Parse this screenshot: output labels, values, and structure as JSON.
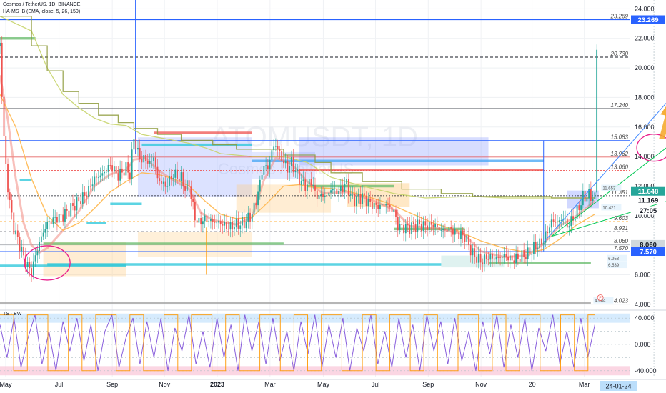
{
  "header": {
    "symbol_line": "Cosmos / TetherUS, 1D, BINANCE",
    "indicator_line": "HA-MS_B (EMA, close, 5, 26, 150)",
    "oscillator_label": "TS · BW"
  },
  "watermark": {
    "ticker": "ATOMUSDT, 1D",
    "name": "Cosmos / TetherUS"
  },
  "colors": {
    "price_up": "#26a69a",
    "price_down": "#ef5350",
    "highlight_blue": "#2962ff",
    "circle_magenta": "#e91e8c",
    "arrow_orange": "#f5a623",
    "ema_fast": "#f28b82",
    "ema_mid": "#ffb74d",
    "ema_slow": "#c6d46a",
    "ema_long": "#8d9a3a",
    "osc_purple": "#7b4cd8",
    "osc_orange": "#ff9800",
    "trend_green": "#00c853",
    "trend_blue": "#448aff"
  },
  "chart_data": {
    "type": "line",
    "title": "ATOMUSDT, 1D",
    "xlabel": "",
    "ylabel": "",
    "ylim": [
      3.7,
      24.6
    ],
    "x_ticks": [
      "May",
      "Jul",
      "Sep",
      "Nov",
      "2023",
      "Mar",
      "May",
      "Jul",
      "Sep",
      "Nov",
      "20",
      "Mar"
    ],
    "y_ticks": [
      "24.000",
      "22.000",
      "20.000",
      "18.000",
      "16.000",
      "14.000",
      "12.000",
      "10.000",
      "8.000",
      "6.000",
      "4.000"
    ],
    "series": [
      {
        "name": "Price",
        "points": [
          [
            0,
            21.5
          ],
          [
            6,
            14
          ],
          [
            12,
            11
          ],
          [
            18,
            9
          ],
          [
            24,
            8.2
          ],
          [
            30,
            7.2
          ],
          [
            36,
            6.5
          ],
          [
            40,
            6.2
          ],
          [
            46,
            7.5
          ],
          [
            52,
            8.5
          ],
          [
            60,
            9.5
          ],
          [
            70,
            9.8
          ],
          [
            80,
            10
          ],
          [
            90,
            10.5
          ],
          [
            100,
            11
          ],
          [
            110,
            11.5
          ],
          [
            120,
            12.5
          ],
          [
            130,
            12.8
          ],
          [
            140,
            13.4
          ],
          [
            150,
            12.7
          ],
          [
            160,
            13.2
          ],
          [
            165,
            12.8
          ],
          [
            170,
            15.3
          ],
          [
            175,
            14.2
          ],
          [
            180,
            13.8
          ],
          [
            185,
            13.8
          ],
          [
            190,
            13.5
          ],
          [
            195,
            14
          ],
          [
            200,
            12.5
          ],
          [
            210,
            12
          ],
          [
            220,
            12.8
          ],
          [
            230,
            12.5
          ],
          [
            236,
            11.8
          ],
          [
            240,
            12.2
          ],
          [
            244,
            10.8
          ],
          [
            248,
            9.8
          ],
          [
            252,
            9.5
          ],
          [
            260,
            9.8
          ],
          [
            270,
            9.6
          ],
          [
            280,
            9.5
          ],
          [
            290,
            9.2
          ],
          [
            300,
            9.4
          ],
          [
            310,
            9.5
          ],
          [
            320,
            10.1
          ],
          [
            325,
            11
          ],
          [
            330,
            12.2
          ],
          [
            334,
            13.4
          ],
          [
            340,
            13.2
          ],
          [
            345,
            14.4
          ],
          [
            350,
            14.8
          ],
          [
            355,
            14.2
          ],
          [
            360,
            13.6
          ],
          [
            365,
            13.2
          ],
          [
            370,
            13.6
          ],
          [
            375,
            13
          ],
          [
            380,
            12.5
          ],
          [
            385,
            12.1
          ],
          [
            390,
            12
          ],
          [
            395,
            12.4
          ],
          [
            400,
            11.5
          ],
          [
            405,
            11.3
          ],
          [
            410,
            11.4
          ],
          [
            415,
            11.3
          ],
          [
            420,
            11.8
          ],
          [
            430,
            11.6
          ],
          [
            440,
            12.2
          ],
          [
            445,
            11.3
          ],
          [
            450,
            11.1
          ],
          [
            460,
            11.3
          ],
          [
            470,
            10.8
          ],
          [
            480,
            10.6
          ],
          [
            490,
            10.8
          ],
          [
            500,
            10.3
          ],
          [
            505,
            9.3
          ],
          [
            510,
            9.2
          ],
          [
            520,
            9.2
          ],
          [
            530,
            9.4
          ],
          [
            540,
            9.3
          ],
          [
            550,
            9.4
          ],
          [
            560,
            9
          ],
          [
            570,
            9.1
          ],
          [
            580,
            8.8
          ],
          [
            590,
            8.6
          ],
          [
            600,
            7.4
          ],
          [
            610,
            6.9
          ],
          [
            620,
            7.2
          ],
          [
            630,
            7.1
          ],
          [
            640,
            7.3
          ],
          [
            650,
            7
          ],
          [
            660,
            7.2
          ],
          [
            670,
            7.4
          ],
          [
            680,
            7.9
          ],
          [
            690,
            8.3
          ],
          [
            700,
            9.6
          ],
          [
            710,
            9.6
          ],
          [
            715,
            9.9
          ],
          [
            720,
            9.3
          ],
          [
            730,
            10
          ],
          [
            740,
            11.2
          ],
          [
            748,
            11.4
          ],
          [
            752,
            11.2
          ],
          [
            755,
            11.2
          ]
        ]
      },
      {
        "name": "EMA 5",
        "points": [
          [
            0,
            19.5
          ],
          [
            10,
            16.5
          ],
          [
            20,
            12.5
          ],
          [
            30,
            9.5
          ],
          [
            40,
            8
          ],
          [
            50,
            7.5
          ],
          [
            60,
            7.8
          ],
          [
            80,
            9
          ],
          [
            100,
            10.3
          ],
          [
            120,
            12
          ],
          [
            140,
            12.8
          ],
          [
            160,
            13.1
          ],
          [
            170,
            13.8
          ],
          [
            185,
            13.9
          ],
          [
            200,
            13.1
          ],
          [
            220,
            12.4
          ],
          [
            240,
            11.8
          ],
          [
            255,
            10.2
          ],
          [
            270,
            9.7
          ],
          [
            300,
            9.4
          ],
          [
            320,
            9.9
          ],
          [
            335,
            12.4
          ],
          [
            350,
            13.9
          ],
          [
            370,
            13.5
          ],
          [
            390,
            12.3
          ],
          [
            410,
            11.5
          ],
          [
            440,
            11.6
          ],
          [
            470,
            11.1
          ],
          [
            500,
            10.4
          ],
          [
            520,
            9.3
          ],
          [
            560,
            9.1
          ],
          [
            590,
            8.7
          ],
          [
            610,
            7.6
          ],
          [
            640,
            7.2
          ],
          [
            670,
            7.3
          ],
          [
            690,
            8.1
          ],
          [
            710,
            9.3
          ],
          [
            730,
            9.9
          ],
          [
            755,
            11
          ]
        ]
      },
      {
        "name": "EMA 26",
        "points": [
          [
            0,
            18.2
          ],
          [
            20,
            16
          ],
          [
            40,
            12.5
          ],
          [
            60,
            10
          ],
          [
            80,
            9
          ],
          [
            100,
            9.5
          ],
          [
            120,
            10.5
          ],
          [
            140,
            11.6
          ],
          [
            160,
            12.3
          ],
          [
            180,
            12.9
          ],
          [
            200,
            12.8
          ],
          [
            220,
            12.5
          ],
          [
            240,
            12
          ],
          [
            260,
            11
          ],
          [
            280,
            10.1
          ],
          [
            300,
            9.8
          ],
          [
            320,
            9.9
          ],
          [
            340,
            10.9
          ],
          [
            360,
            12
          ],
          [
            380,
            12.1
          ],
          [
            400,
            11.9
          ],
          [
            430,
            11.8
          ],
          [
            460,
            11.4
          ],
          [
            490,
            10.9
          ],
          [
            520,
            10.2
          ],
          [
            550,
            9.5
          ],
          [
            580,
            9
          ],
          [
            610,
            8.3
          ],
          [
            640,
            7.8
          ],
          [
            670,
            7.5
          ],
          [
            690,
            7.7
          ],
          [
            710,
            8.4
          ],
          [
            730,
            9.3
          ],
          [
            755,
            10.1
          ]
        ]
      },
      {
        "name": "EMA 150",
        "points": [
          [
            0,
            23.5
          ],
          [
            40,
            22.5
          ],
          [
            60,
            20
          ],
          [
            80,
            18.2
          ],
          [
            100,
            17.3
          ],
          [
            120,
            16.6
          ],
          [
            140,
            16.2
          ],
          [
            160,
            16.1
          ],
          [
            180,
            15.5
          ],
          [
            200,
            15.3
          ],
          [
            220,
            15.1
          ],
          [
            240,
            14.9
          ],
          [
            260,
            14.6
          ],
          [
            280,
            14.2
          ],
          [
            320,
            14
          ],
          [
            360,
            14
          ],
          [
            390,
            13.6
          ],
          [
            420,
            12.6
          ],
          [
            460,
            12
          ],
          [
            500,
            11.5
          ],
          [
            540,
            11.2
          ],
          [
            600,
            11.3
          ],
          [
            640,
            11.2
          ],
          [
            680,
            11.2
          ],
          [
            720,
            11.2
          ],
          [
            755,
            11.2
          ]
        ]
      }
    ],
    "price_levels": [
      "23.269",
      "20.730",
      "17.240",
      "15.083",
      "13.962",
      "13.060",
      "11.351",
      "9.603",
      "8.921",
      "8.060",
      "7.570",
      "4.023"
    ],
    "price_tags": [
      "23.269",
      "11.648",
      "11.169",
      "27:05",
      "8.060",
      "7.570"
    ],
    "box_labels": [
      "11.653",
      "10.421",
      "6.953",
      "6.539",
      "4.084"
    ],
    "oscillator": {
      "ylim": [
        -50,
        50
      ],
      "y_ticks": [
        "40.000",
        "0.000",
        "-40.000"
      ],
      "series": [
        {
          "name": "fast",
          "values": [
            30,
            -20,
            40,
            -35,
            10,
            45,
            -30,
            20,
            -40,
            35,
            -10,
            40,
            -25,
            30,
            -40,
            20,
            45,
            -35,
            10,
            40,
            -30,
            35,
            -20,
            40,
            -40,
            25,
            -10,
            45,
            -30,
            20,
            -35,
            40,
            -20,
            30,
            -40,
            45,
            -10,
            35,
            -30,
            40,
            -25,
            20,
            -40,
            35,
            -15,
            45,
            -35,
            30,
            -20,
            40,
            -40,
            25,
            -10,
            45,
            -30,
            20,
            -35,
            40,
            -20,
            30,
            -40,
            45,
            -10,
            35,
            -30,
            40,
            -25,
            20,
            -40,
            35,
            -15,
            45,
            -35,
            30,
            -20,
            40,
            -40,
            25,
            -10,
            45,
            -30,
            20,
            -35,
            40,
            -20,
            30
          ]
        },
        {
          "name": "slow",
          "values": [
            45,
            45,
            -40,
            -40,
            45,
            45,
            45,
            -40,
            -40,
            -40,
            45,
            45,
            -40,
            -40,
            45,
            45,
            45,
            -40,
            -40,
            45,
            45,
            -40,
            -40,
            -40,
            45,
            45,
            -40,
            -40,
            45,
            45,
            45,
            -40,
            -40,
            45,
            45,
            -40,
            -40,
            -40,
            45,
            45,
            45,
            -40,
            -40,
            45,
            45,
            -40,
            -40,
            45,
            45,
            45,
            -40,
            -40,
            -40,
            45,
            45,
            -40,
            -40,
            45,
            45,
            45,
            -40,
            -40,
            45,
            45,
            -40,
            -40,
            -40,
            45,
            45,
            45,
            -40,
            -40,
            45,
            45,
            -40,
            -40,
            45,
            45,
            45,
            -40,
            -40,
            -40,
            45,
            45,
            -40,
            -40,
            45,
            45
          ]
        }
      ]
    },
    "date_tag": "24-01-24",
    "event_marker": "E"
  }
}
